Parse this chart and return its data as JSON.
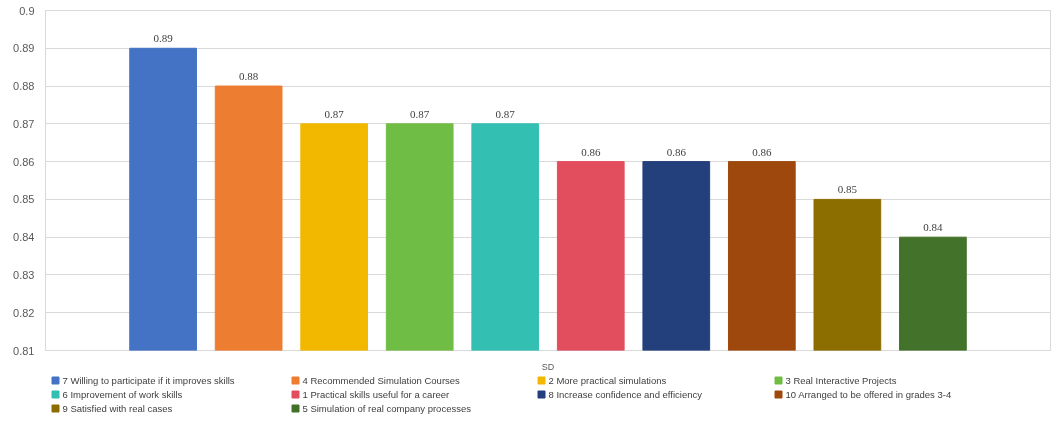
{
  "chart_data": {
    "type": "bar",
    "categories": [
      "SD"
    ],
    "series": [
      {
        "name": "7 Willing to participate if it improves skills",
        "color": "#4472c4",
        "values": [
          0.89
        ]
      },
      {
        "name": "4 Recommended Simulation Courses",
        "color": "#ed7d31",
        "values": [
          0.88
        ]
      },
      {
        "name": "2 More practical simulations",
        "color": "#f2b800",
        "values": [
          0.87
        ]
      },
      {
        "name": "3 Real Interactive Projects",
        "color": "#70bd45",
        "values": [
          0.87
        ]
      },
      {
        "name": "6 Improvement of work skills",
        "color": "#33bfb2",
        "values": [
          0.87
        ]
      },
      {
        "name": "1 Practical skills useful for a career",
        "color": "#e34e5f",
        "values": [
          0.86
        ]
      },
      {
        "name": "8 Increase confidence and efficiency",
        "color": "#233f7c",
        "values": [
          0.86
        ]
      },
      {
        "name": "10 Arranged to be offered in grades 3-4",
        "color": "#9e480e",
        "values": [
          0.86
        ]
      },
      {
        "name": "9 Satisfied with real cases",
        "color": "#8c6d00",
        "values": [
          0.85
        ]
      },
      {
        "name": "5 Simulation of real company processes",
        "color": "#43722a",
        "values": [
          0.84
        ]
      }
    ],
    "ylim": [
      0.81,
      0.9
    ],
    "yticks": [
      0.81,
      0.82,
      0.83,
      0.84,
      0.85,
      0.86,
      0.87,
      0.88,
      0.89,
      0.9
    ],
    "grid": "y",
    "legend": "bottom",
    "data_labels": true
  }
}
